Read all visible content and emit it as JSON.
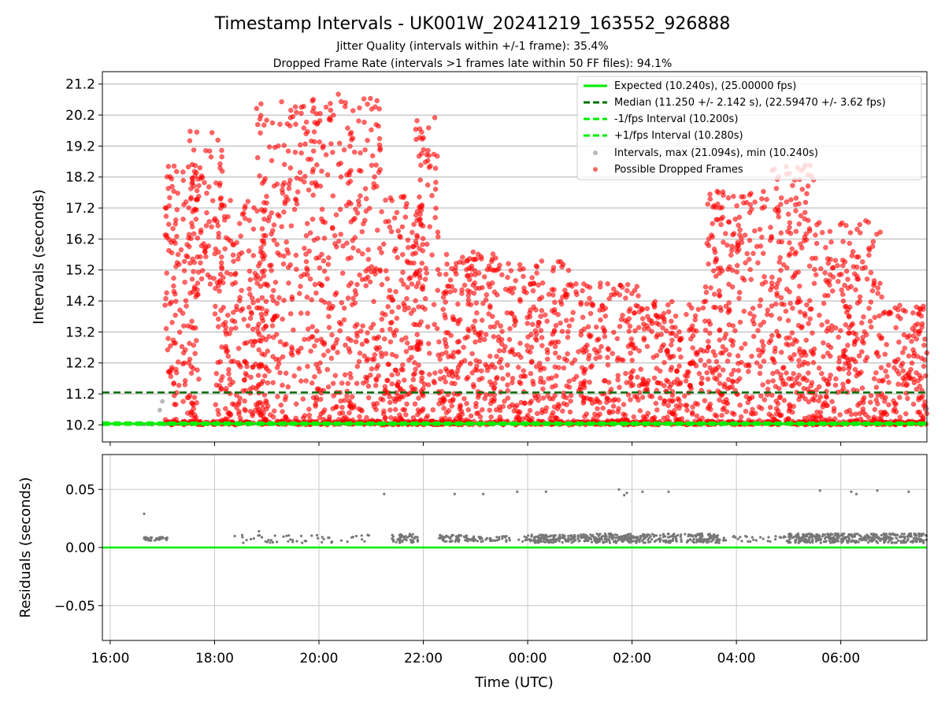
{
  "chart_data": [
    {
      "type": "scatter",
      "title": "Timestamp Intervals - UK001W_20241219_163552_926888",
      "subtitle_lines": [
        "Jitter Quality (intervals within +/-1 frame): 35.4%",
        "Dropped Frame Rate (intervals >1 frames late within 50 FF files): 94.1%"
      ],
      "xlabel": "",
      "ylabel": "Intervals (seconds)",
      "ylim": [
        9.65,
        21.6
      ],
      "yticks": [
        "10.2",
        "11.2",
        "12.2",
        "13.2",
        "14.2",
        "15.2",
        "16.2",
        "17.2",
        "18.2",
        "19.2",
        "20.2",
        "21.2"
      ],
      "grid": true,
      "legend_position": "top-right",
      "legend": [
        "Expected (10.240s), (25.00000 fps)",
        "Median (11.250 +/- 2.142 s), (22.59470 +/- 3.62 fps)",
        "-1/fps Interval (10.200s)",
        "+1/fps Interval (10.280s)",
        "Intervals, max (21.094s), min (10.240s)",
        "Possible Dropped Frames"
      ],
      "reference_lines": {
        "expected": 10.24,
        "median": 11.25,
        "minus_one_fps": 10.2,
        "plus_one_fps": 10.28
      },
      "intervals_max": 21.094,
      "intervals_min": 10.24,
      "series": [
        {
          "name": "Intervals, max (21.094s), min (10.240s)",
          "color": "#808080",
          "points_hours": [
            [
              16.65,
              10.22
            ],
            [
              16.95,
              10.68
            ],
            [
              17.0,
              10.96
            ],
            [
              17.05,
              10.22
            ],
            [
              16.8,
              10.22
            ],
            [
              17.1,
              10.24
            ],
            [
              31.65,
              10.72
            ]
          ]
        },
        {
          "name": "Possible Dropped Frames",
          "color": "#ff0000",
          "clusters": [
            {
              "x": [
                17.05,
                17.7
              ],
              "y": [
                10.3,
                18.9
              ],
              "n": 160
            },
            {
              "x": [
                17.5,
                18.15
              ],
              "y": [
                14.5,
                19.8
              ],
              "n": 90
            },
            {
              "x": [
                18.0,
                19.0
              ],
              "y": [
                10.3,
                17.5
              ],
              "n": 220
            },
            {
              "x": [
                18.8,
                20.0
              ],
              "y": [
                10.3,
                20.8
              ],
              "n": 280
            },
            {
              "x": [
                20.0,
                21.2
              ],
              "y": [
                10.3,
                20.9
              ],
              "n": 300
            },
            {
              "x": [
                21.2,
                22.0
              ],
              "y": [
                10.3,
                17.6
              ],
              "n": 200
            },
            {
              "x": [
                21.8,
                22.3
              ],
              "y": [
                10.3,
                20.3
              ],
              "n": 90
            },
            {
              "x": [
                22.3,
                23.5
              ],
              "y": [
                10.3,
                15.8
              ],
              "n": 260
            },
            {
              "x": [
                23.5,
                24.8
              ],
              "y": [
                10.3,
                15.5
              ],
              "n": 230
            },
            {
              "x": [
                24.8,
                26.2
              ],
              "y": [
                10.3,
                14.8
              ],
              "n": 220
            },
            {
              "x": [
                26.2,
                27.4
              ],
              "y": [
                10.3,
                14.2
              ],
              "n": 200
            },
            {
              "x": [
                27.4,
                28.6
              ],
              "y": [
                10.3,
                17.8
              ],
              "n": 260
            },
            {
              "x": [
                28.6,
                29.5
              ],
              "y": [
                10.3,
                18.6
              ],
              "n": 240
            },
            {
              "x": [
                29.5,
                30.8
              ],
              "y": [
                10.3,
                16.8
              ],
              "n": 260
            },
            {
              "x": [
                30.8,
                31.65
              ],
              "y": [
                10.3,
                14.2
              ],
              "n": 130
            },
            {
              "x": [
                17.05,
                31.65
              ],
              "y": [
                10.2,
                10.32
              ],
              "n": 700
            }
          ]
        }
      ],
      "xticks": [
        "16:00",
        "18:00",
        "20:00",
        "22:00",
        "00:00",
        "02:00",
        "04:00",
        "06:00"
      ],
      "xticks_hours": [
        16,
        18,
        20,
        22,
        24,
        26,
        28,
        30
      ],
      "xlim_hours": [
        15.85,
        31.65
      ]
    },
    {
      "type": "scatter",
      "xlabel": "Time (UTC)",
      "ylabel": "Residuals (seconds)",
      "ylim": [
        -0.08,
        0.08
      ],
      "yticks": [
        "0.05",
        "0.00",
        "−0.05"
      ],
      "yticks_values": [
        0.05,
        0.0,
        -0.05
      ],
      "xticks": [
        "16:00",
        "18:00",
        "20:00",
        "22:00",
        "00:00",
        "02:00",
        "04:00",
        "06:00"
      ],
      "xticks_hours": [
        16,
        18,
        20,
        22,
        24,
        26,
        28,
        30
      ],
      "xlim_hours": [
        15.85,
        31.65
      ],
      "grid": true,
      "zero_line_color": "#00ee00",
      "residual_color": "#777777",
      "outliers": [
        [
          16.65,
          0.029
        ],
        [
          21.25,
          0.046
        ],
        [
          22.6,
          0.046
        ],
        [
          23.15,
          0.046
        ],
        [
          23.8,
          0.048
        ],
        [
          24.35,
          0.048
        ],
        [
          25.75,
          0.05
        ],
        [
          25.85,
          0.045
        ],
        [
          25.9,
          0.047
        ],
        [
          26.2,
          0.048
        ],
        [
          26.7,
          0.048
        ],
        [
          29.6,
          0.049
        ],
        [
          30.2,
          0.048
        ],
        [
          30.3,
          0.046
        ],
        [
          30.7,
          0.049
        ],
        [
          31.3,
          0.048
        ],
        [
          18.85,
          0.014
        ]
      ],
      "dense_bands": [
        {
          "x": [
            16.65,
            17.1
          ],
          "y": [
            0.006,
            0.009
          ],
          "n": 40
        },
        {
          "x": [
            18.3,
            21.0
          ],
          "y": [
            0.004,
            0.011
          ],
          "n": 50
        },
        {
          "x": [
            21.4,
            21.9
          ],
          "y": [
            0.004,
            0.012
          ],
          "n": 50
        },
        {
          "x": [
            22.3,
            23.0
          ],
          "y": [
            0.004,
            0.011
          ],
          "n": 60
        },
        {
          "x": [
            23.0,
            24.0
          ],
          "y": [
            0.005,
            0.01
          ],
          "n": 40
        },
        {
          "x": [
            24.0,
            25.0
          ],
          "y": [
            0.004,
            0.011
          ],
          "n": 120
        },
        {
          "x": [
            25.0,
            27.7
          ],
          "y": [
            0.004,
            0.012
          ],
          "n": 320
        },
        {
          "x": [
            27.7,
            29.0
          ],
          "y": [
            0.005,
            0.01
          ],
          "n": 30
        },
        {
          "x": [
            29.0,
            31.65
          ],
          "y": [
            0.004,
            0.012
          ],
          "n": 380
        }
      ]
    }
  ]
}
